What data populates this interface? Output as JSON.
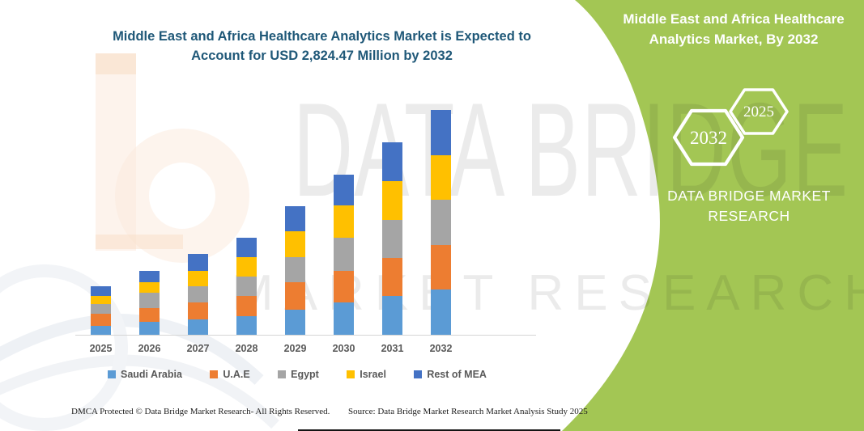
{
  "main_title": {
    "line1": "Middle East and Africa Healthcare Analytics Market is Expected to",
    "line2": "Account for USD 2,824.47 Million by 2032",
    "color": "#1f5878"
  },
  "banner": {
    "color": "#a3c654",
    "title_line1": "Middle East and Africa Healthcare",
    "title_line2": "Analytics Market, By 2032",
    "hexagons": [
      {
        "label": "2032"
      },
      {
        "label": "2025"
      }
    ],
    "brand_line1": "DATA BRIDGE MARKET",
    "brand_line2": "RESEARCH"
  },
  "watermark": {
    "row1": "DATA BRIDGE",
    "row2": "MARKET RESEARCH"
  },
  "chart_data": {
    "type": "bar",
    "stacked": true,
    "title": "Middle East and Africa Healthcare Analytics Market is Expected to Account for USD 2,824.47 Million by 2032",
    "unit": "USD Million",
    "categories": [
      "2025",
      "2026",
      "2027",
      "2028",
      "2029",
      "2030",
      "2031",
      "2032"
    ],
    "series": [
      {
        "name": "Saudi Arabia",
        "color": "#5b9bd5",
        "values": [
          115,
          166,
          193,
          237,
          312,
          403,
          491,
          572
        ]
      },
      {
        "name": "U.A.E",
        "color": "#ed7d31",
        "values": [
          146,
          169,
          210,
          254,
          345,
          400,
          474,
          559
        ]
      },
      {
        "name": "Egypt",
        "color": "#a5a5a5",
        "values": [
          125,
          190,
          203,
          244,
          322,
          413,
          481,
          569
        ]
      },
      {
        "name": "Israel",
        "color": "#ffc000",
        "values": [
          105,
          132,
          196,
          244,
          325,
          406,
          484,
          559
        ]
      },
      {
        "name": "Rest of MEA",
        "color": "#4472c4",
        "values": [
          115,
          146,
          210,
          237,
          312,
          393,
          488,
          565.47
        ]
      }
    ],
    "totals": [
      606,
      803,
      1012,
      1216,
      1616,
      2015,
      2418,
      2824.47
    ],
    "xlabel": "",
    "ylabel": "",
    "ylim": [
      0,
      2900
    ],
    "gridlines": false,
    "legend_position": "bottom",
    "axis_label_color": "#595959"
  },
  "footer": {
    "dmca": "DMCA Protected © Data Bridge Market Research-  All Rights Reserved.",
    "source": "Source: Data Bridge Market Research  Market Analysis Study 2025"
  }
}
